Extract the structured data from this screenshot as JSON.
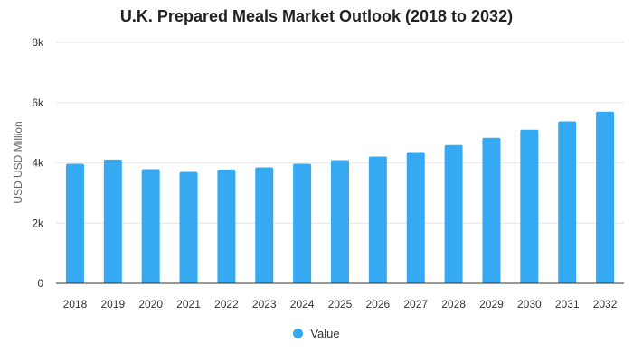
{
  "chart_data": {
    "type": "bar",
    "title": "U.K. Prepared Meals Market Outlook (2018 to 2032)",
    "xlabel": "",
    "ylabel": "USD USD Million",
    "ylim": [
      0,
      8000
    ],
    "yticks": [
      0,
      2000,
      4000,
      6000,
      8000
    ],
    "ytick_labels": [
      "0",
      "2k",
      "4k",
      "6k",
      "8k"
    ],
    "grid": true,
    "legend_position": "bottom-center",
    "categories": [
      "2018",
      "2019",
      "2020",
      "2021",
      "2022",
      "2023",
      "2024",
      "2025",
      "2026",
      "2027",
      "2028",
      "2029",
      "2030",
      "2031",
      "2032"
    ],
    "series": [
      {
        "name": "Value",
        "color": "#35aaf2",
        "values": [
          3970,
          4110,
          3790,
          3700,
          3780,
          3850,
          3970,
          4090,
          4210,
          4360,
          4590,
          4830,
          5100,
          5380,
          5700
        ]
      }
    ]
  }
}
